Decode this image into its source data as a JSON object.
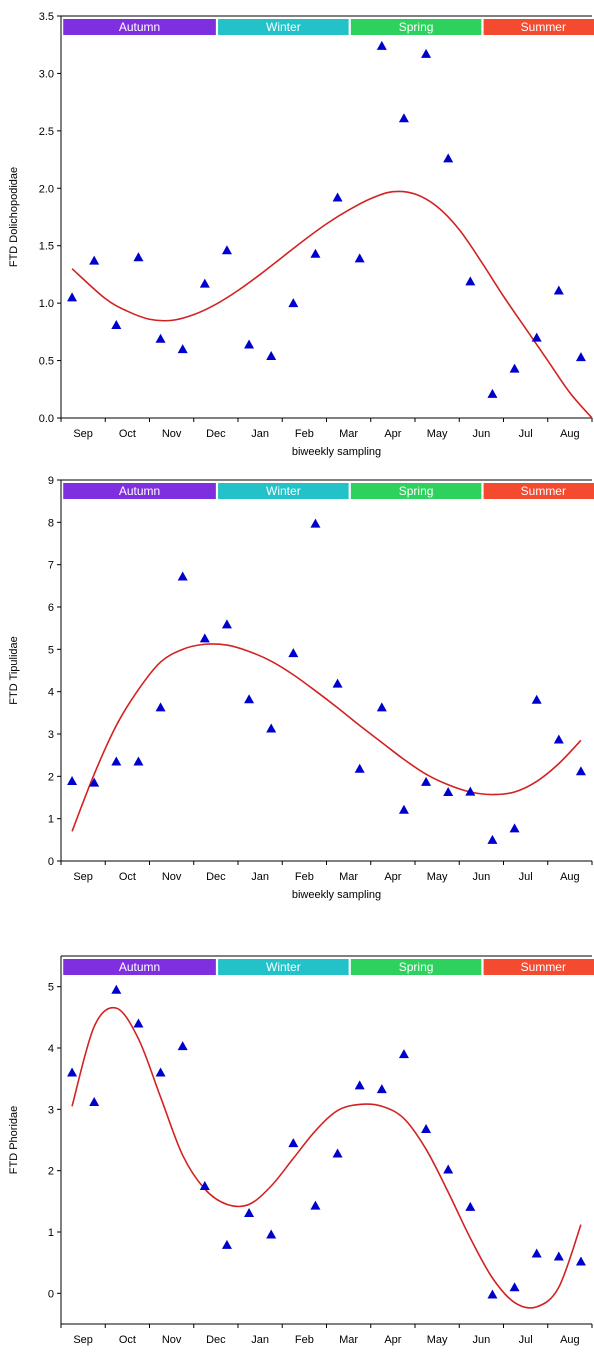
{
  "shared": {
    "months": [
      "Sep",
      "Oct",
      "Nov",
      "Dec",
      "Jan",
      "Feb",
      "Mar",
      "Apr",
      "May",
      "Jun",
      "Jul",
      "Aug"
    ],
    "xlabel": "biweekly sampling",
    "seasons": [
      {
        "label": "Autumn",
        "color": "#7f2fe0",
        "start": 0.1,
        "end": 7.0
      },
      {
        "label": "Winter",
        "color": "#22c2c8",
        "start": 7.1,
        "end": 13.0
      },
      {
        "label": "Spring",
        "color": "#2ed15e",
        "start": 13.1,
        "end": 19.0
      },
      {
        "label": "Summer",
        "color": "#f44a30",
        "start": 19.1,
        "end": 24.5
      }
    ],
    "marker_color": "#0000cc",
    "curve_color": "#d32222"
  },
  "chart_data": [
    {
      "type": "scatter",
      "title": "",
      "xlabel": "biweekly sampling",
      "ylabel": "FTD Dolichopodidae",
      "x": [
        0.5,
        1.5,
        2.5,
        3.5,
        4.5,
        5.5,
        6.5,
        7.5,
        8.5,
        9.5,
        10.5,
        11.5,
        12.5,
        13.5,
        14.5,
        15.5,
        16.5,
        17.5,
        18.5,
        19.5,
        20.5,
        21.5,
        22.5,
        23.5
      ],
      "y": [
        1.05,
        1.37,
        0.81,
        1.4,
        0.69,
        0.6,
        1.17,
        1.46,
        0.64,
        0.54,
        1.0,
        1.43,
        1.92,
        1.39,
        3.24,
        2.61,
        3.17,
        2.26,
        1.19,
        0.21,
        0.43,
        0.7,
        1.11,
        0.53
      ],
      "fit": {
        "x": [
          0.5,
          2,
          3,
          4,
          5,
          6,
          7,
          8,
          9,
          10,
          11,
          12,
          13,
          14,
          15,
          16,
          17,
          18,
          19,
          20,
          21,
          22,
          23,
          24
        ],
        "y": [
          1.3,
          1.04,
          0.93,
          0.86,
          0.85,
          0.9,
          0.99,
          1.11,
          1.25,
          1.4,
          1.55,
          1.69,
          1.81,
          1.91,
          1.97,
          1.95,
          1.84,
          1.64,
          1.36,
          1.06,
          0.78,
          0.5,
          0.22,
          0.0
        ]
      },
      "ylim": [
        0,
        3.5
      ],
      "yticks": [
        "0.0",
        "0.5",
        "1.0",
        "1.5",
        "2.0",
        "2.5",
        "3.0",
        "3.5"
      ],
      "ytick_values": [
        0,
        0.5,
        1.0,
        1.5,
        2.0,
        2.5,
        3.0,
        3.5
      ]
    },
    {
      "type": "scatter",
      "title": "",
      "xlabel": "biweekly sampling",
      "ylabel": "FTD Tipulidae",
      "x": [
        0.5,
        1.5,
        2.5,
        3.5,
        4.5,
        5.5,
        6.5,
        7.5,
        8.5,
        9.5,
        10.5,
        11.5,
        12.5,
        13.5,
        14.5,
        15.5,
        16.5,
        17.5,
        18.5,
        19.5,
        20.5,
        21.5,
        22.5,
        23.5
      ],
      "y": [
        1.89,
        1.85,
        2.35,
        2.35,
        3.63,
        6.72,
        5.26,
        5.59,
        3.82,
        3.13,
        4.91,
        7.97,
        4.19,
        2.18,
        3.63,
        1.21,
        1.87,
        1.63,
        1.64,
        0.5,
        0.77,
        3.81,
        2.87,
        2.12
      ],
      "fit": {
        "x": [
          0.5,
          1.5,
          2.5,
          3.5,
          4.5,
          5.5,
          6.5,
          7.5,
          8.5,
          9.5,
          10.5,
          11.5,
          12.5,
          13.5,
          14.5,
          15.5,
          16.5,
          17.5,
          18.5,
          19.5,
          20.5,
          21.5,
          22.5,
          23.5
        ],
        "y": [
          0.7,
          2.05,
          3.2,
          4.05,
          4.7,
          5.0,
          5.12,
          5.1,
          4.95,
          4.72,
          4.4,
          4.02,
          3.62,
          3.2,
          2.8,
          2.4,
          2.05,
          1.8,
          1.63,
          1.57,
          1.63,
          1.88,
          2.3,
          2.85
        ]
      },
      "ylim": [
        0,
        9
      ],
      "yticks": [
        "0",
        "1",
        "2",
        "3",
        "4",
        "5",
        "6",
        "7",
        "8",
        "9"
      ],
      "ytick_values": [
        0,
        1,
        2,
        3,
        4,
        5,
        6,
        7,
        8,
        9
      ]
    },
    {
      "type": "scatter",
      "title": "",
      "xlabel": "biweekly sampling",
      "ylabel": "FTD Phoridae",
      "x": [
        0.5,
        1.5,
        2.5,
        3.5,
        4.5,
        5.5,
        6.5,
        7.5,
        8.5,
        9.5,
        10.5,
        11.5,
        12.5,
        13.5,
        14.5,
        15.5,
        16.5,
        17.5,
        18.5,
        19.5,
        20.5,
        21.5,
        22.5,
        23.5
      ],
      "y": [
        3.6,
        3.12,
        4.95,
        4.4,
        3.6,
        4.03,
        1.75,
        0.79,
        1.31,
        0.96,
        2.45,
        1.43,
        2.28,
        3.39,
        3.33,
        3.9,
        2.68,
        2.02,
        1.41,
        -0.02,
        0.1,
        0.65,
        0.6,
        0.52
      ],
      "fit": {
        "x": [
          0.5,
          1.5,
          2.5,
          3.5,
          4.5,
          5.5,
          6.5,
          7.5,
          8.5,
          9.5,
          10.5,
          11.5,
          12.5,
          13.5,
          14.5,
          15.5,
          16.5,
          17.5,
          18.5,
          19.5,
          20.5,
          21.5,
          22.5,
          23.5
        ],
        "y": [
          3.05,
          4.35,
          4.65,
          4.15,
          3.2,
          2.25,
          1.7,
          1.45,
          1.45,
          1.75,
          2.2,
          2.65,
          2.98,
          3.08,
          3.05,
          2.85,
          2.35,
          1.65,
          0.9,
          0.25,
          -0.15,
          -0.22,
          0.1,
          1.12
        ]
      },
      "ylim": [
        -0.5,
        5.5
      ],
      "yticks": [
        "0",
        "1",
        "2",
        "3",
        "4",
        "5"
      ],
      "ytick_values": [
        0,
        1,
        2,
        3,
        4,
        5
      ]
    }
  ]
}
